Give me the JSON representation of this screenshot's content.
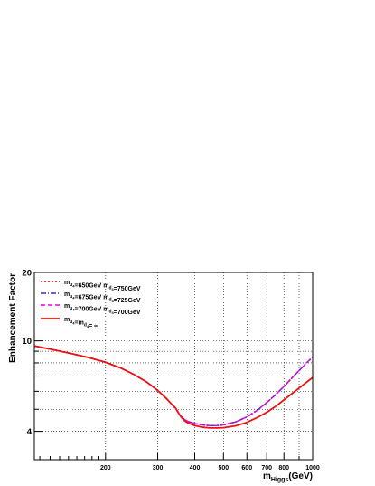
{
  "chart_data": {
    "type": "line",
    "title": "",
    "xlabel": "m",
    "xlabel_sub": "Higgs",
    "xlabel_unit": "(GeV)",
    "ylabel": "Enhancement Factor",
    "xscale": "log",
    "yscale": "log",
    "xlim": [
      115,
      1000
    ],
    "ylim": [
      3,
      20
    ],
    "grid": true,
    "legend_position": "top-left",
    "x_ticks": [
      200,
      300,
      400,
      500,
      600,
      700,
      800,
      1000
    ],
    "x_tick_labels": [
      "200",
      "300",
      "400",
      "500",
      "600",
      "700",
      "800",
      "1000"
    ],
    "y_ticks": [
      4,
      10,
      20
    ],
    "y_tick_labels": [
      "4",
      "10",
      "20"
    ],
    "x_grid": [
      200,
      300,
      400,
      500,
      600,
      700,
      800,
      900
    ],
    "y_grid": [
      4,
      5,
      6,
      7,
      8,
      9,
      10
    ],
    "x": [
      115,
      130,
      150,
      175,
      200,
      225,
      250,
      275,
      300,
      320,
      335,
      345,
      350,
      355,
      360,
      370,
      380,
      400,
      425,
      450,
      475,
      500,
      550,
      600,
      650,
      700,
      750,
      800,
      850,
      900,
      950,
      1000
    ],
    "series": [
      {
        "legend_parts": [
          {
            "t": "m",
            "sub": "u",
            "subsub": "4"
          },
          {
            "t": "=650GeV m",
            "sub": "d",
            "subsub": "4"
          },
          {
            "t": "=750GeV"
          }
        ],
        "color": "#cc0000",
        "dash": "2,2",
        "width": 1.6,
        "values": [
          9.5,
          9.2,
          8.85,
          8.45,
          8.05,
          7.6,
          7.1,
          6.6,
          6.05,
          5.6,
          5.25,
          5.05,
          4.9,
          4.75,
          4.65,
          4.5,
          4.42,
          4.33,
          4.27,
          4.24,
          4.24,
          4.27,
          4.4,
          4.63,
          4.95,
          5.35,
          5.8,
          6.3,
          6.85,
          7.4,
          7.95,
          8.5
        ]
      },
      {
        "legend_parts": [
          {
            "t": "m",
            "sub": "u",
            "subsub": "4"
          },
          {
            "t": "=675GeV m",
            "sub": "d",
            "subsub": "4"
          },
          {
            "t": "=725GeV"
          }
        ],
        "color": "#3333cc",
        "dash": "6,2,1,2",
        "width": 1.4,
        "values": [
          9.5,
          9.2,
          8.85,
          8.45,
          8.05,
          7.6,
          7.1,
          6.6,
          6.05,
          5.6,
          5.25,
          5.05,
          4.9,
          4.75,
          4.65,
          4.5,
          4.42,
          4.33,
          4.27,
          4.24,
          4.24,
          4.27,
          4.4,
          4.63,
          4.95,
          5.35,
          5.8,
          6.3,
          6.85,
          7.4,
          7.95,
          8.5
        ]
      },
      {
        "legend_parts": [
          {
            "t": "m",
            "sub": "u",
            "subsub": "4"
          },
          {
            "t": "=700GeV m",
            "sub": "d",
            "subsub": "4"
          },
          {
            "t": "=700GeV"
          }
        ],
        "color": "#ee00ee",
        "dash": "5,3",
        "width": 1.4,
        "values": [
          9.5,
          9.2,
          8.85,
          8.45,
          8.05,
          7.6,
          7.1,
          6.6,
          6.05,
          5.6,
          5.25,
          5.05,
          4.9,
          4.75,
          4.65,
          4.5,
          4.42,
          4.33,
          4.27,
          4.24,
          4.24,
          4.27,
          4.4,
          4.63,
          4.95,
          5.35,
          5.8,
          6.3,
          6.85,
          7.4,
          7.95,
          8.5
        ]
      },
      {
        "legend_parts": [
          {
            "t": "m",
            "sub": "u",
            "subsub": "4"
          },
          {
            "t": "=m",
            "sub": "d",
            "subsub": "4"
          },
          {
            "t": "= ∞"
          }
        ],
        "color": "#ee1111",
        "dash": "",
        "width": 1.8,
        "values": [
          9.5,
          9.2,
          8.85,
          8.45,
          8.05,
          7.6,
          7.1,
          6.6,
          6.05,
          5.6,
          5.25,
          5.05,
          4.9,
          4.75,
          4.62,
          4.45,
          4.35,
          4.24,
          4.17,
          4.14,
          4.14,
          4.15,
          4.23,
          4.38,
          4.6,
          4.85,
          5.15,
          5.5,
          5.85,
          6.2,
          6.55,
          6.9
        ]
      }
    ]
  }
}
